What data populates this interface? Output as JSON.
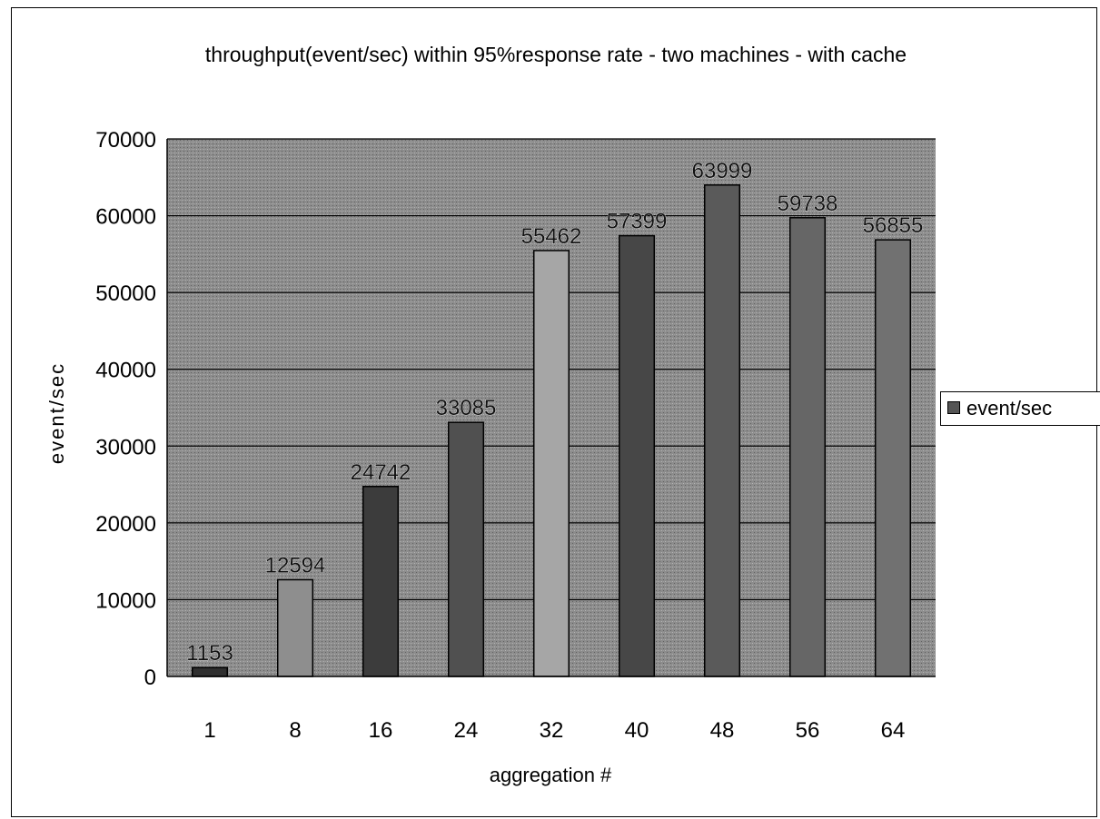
{
  "chart_data": {
    "type": "bar",
    "title": "throughput(event/sec) within 95%response rate - two machines - with cache",
    "xlabel": "aggregation #",
    "ylabel": "event/sec",
    "categories": [
      "1",
      "8",
      "16",
      "24",
      "32",
      "40",
      "48",
      "56",
      "64"
    ],
    "series": [
      {
        "name": "event/sec",
        "values": [
          1153,
          12594,
          24742,
          33085,
          55462,
          57399,
          63999,
          59738,
          56855
        ]
      }
    ],
    "data_labels": [
      "1153",
      "12594",
      "24742",
      "33085",
      "55462",
      "57399",
      "63999",
      "59738",
      "56855"
    ],
    "y_ticks": [
      "0",
      "10000",
      "20000",
      "30000",
      "40000",
      "50000",
      "60000",
      "70000"
    ],
    "ylim": [
      0,
      70000
    ],
    "grid": true,
    "legend_position": "right",
    "colors": {
      "plot_background": "#8c8c8c",
      "bar_fills": [
        "#2f2f2f",
        "#8e8e8e",
        "#3c3c3c",
        "#505050",
        "#a6a6a6",
        "#474747",
        "#5a5a5a",
        "#666666",
        "#717171"
      ],
      "gridline": "#000000",
      "legend_swatch": "#555555"
    }
  }
}
